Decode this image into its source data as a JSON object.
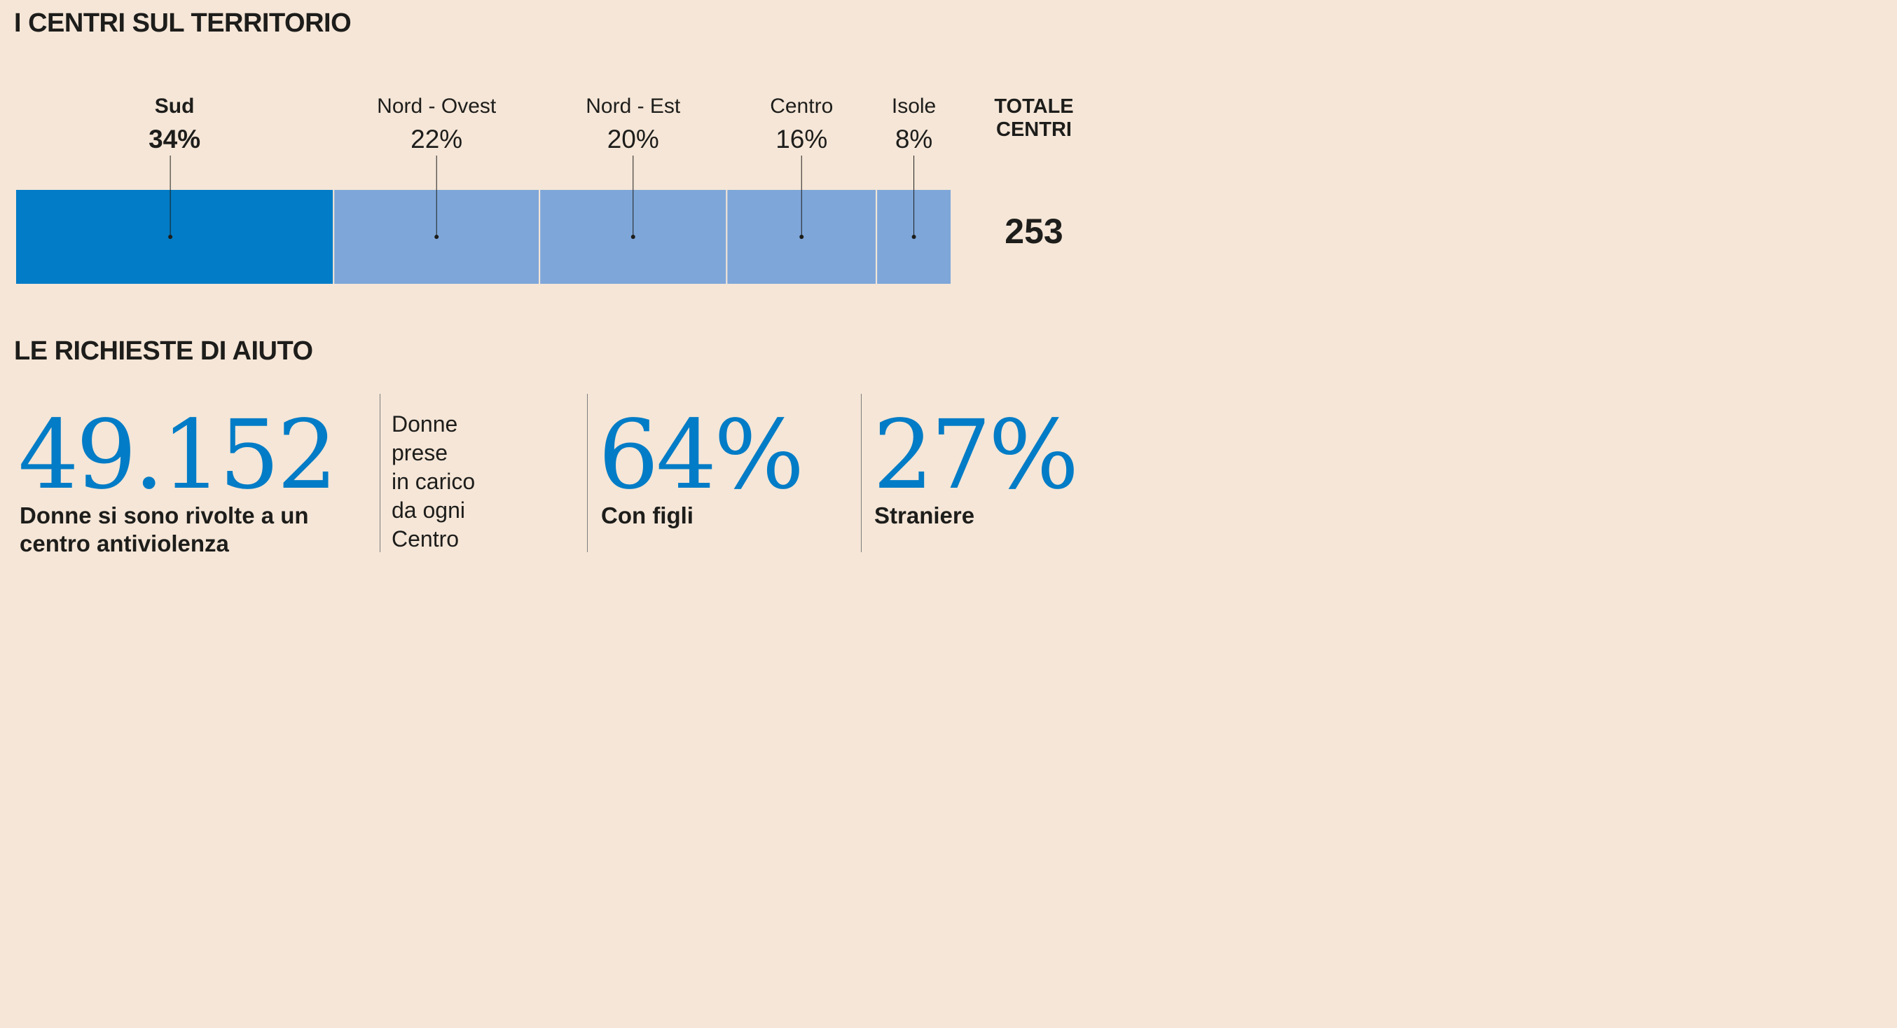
{
  "section1": {
    "title": "I CENTRI SUL TERRITORIO"
  },
  "section2": {
    "title": "LE RICHIESTE DI AIUTO"
  },
  "chart_data": {
    "type": "bar",
    "stacked": true,
    "orientation": "horizontal",
    "categories": [
      "Sud",
      "Nord - Ovest",
      "Nord - Est",
      "Centro",
      "Isole"
    ],
    "values": [
      34,
      22,
      20,
      16,
      8
    ],
    "value_labels": [
      "34%",
      "22%",
      "20%",
      "16%",
      "8%"
    ],
    "unit": "%",
    "highlight": "Sud",
    "colors": {
      "highlight": "#027cc6",
      "default": "#7ea6d9"
    },
    "total": {
      "label_line1": "TOTALE",
      "label_line2": "CENTRI",
      "value": "253"
    }
  },
  "stats": {
    "donne": {
      "value": "49.152",
      "label": "Donne si sono rivolte a un centro antiviolenza"
    },
    "per_centro": {
      "lines": [
        "Donne",
        "prese",
        "in carico",
        "da ogni",
        "Centro"
      ]
    },
    "figli": {
      "value": "64%",
      "label": "Con figli"
    },
    "straniere": {
      "value": "27%",
      "label": "Straniere"
    }
  },
  "colors": {
    "background": "#f5e6d7",
    "accent": "#027cc6",
    "text": "#1d1d1b"
  }
}
